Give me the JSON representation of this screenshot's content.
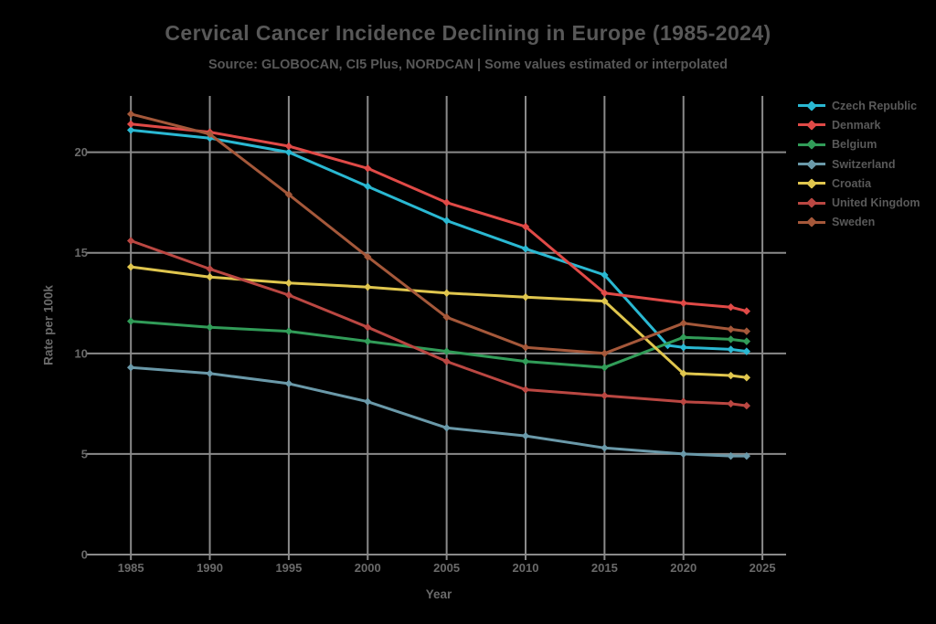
{
  "page": {
    "background": "#000000",
    "text_color": "#585858",
    "tick_color": "#6a6a6a",
    "grid_color": "#8a8a8a"
  },
  "chart_data": {
    "type": "line",
    "title": "Cervical Cancer Incidence Declining in Europe (1985-2024)",
    "subtitle": "Source: GLOBOCAN, CI5 Plus, NORDCAN | Some values estimated or interpolated",
    "xlabel": "Year",
    "ylabel": "Rate per 100k",
    "x_ticks": [
      1985,
      1990,
      1995,
      2000,
      2005,
      2010,
      2015,
      2020,
      2025
    ],
    "y_ticks": [
      0,
      5,
      10,
      15,
      20
    ],
    "xlim": [
      1982.5,
      2026.5
    ],
    "ylim": [
      0,
      22.8
    ],
    "grid": true,
    "legend_position": "top-right",
    "marker": "diamond",
    "series": [
      {
        "name": "Czech Republic",
        "color": "#2ab8d2",
        "points": [
          [
            1985,
            21.1
          ],
          [
            1990,
            20.7
          ],
          [
            1995,
            20.0
          ],
          [
            2000,
            18.3
          ],
          [
            2005,
            16.6
          ],
          [
            2010,
            15.2
          ],
          [
            2015,
            13.9
          ],
          [
            2019,
            10.4
          ],
          [
            2020,
            10.3
          ],
          [
            2023,
            10.2
          ],
          [
            2024,
            10.1
          ]
        ]
      },
      {
        "name": "Denmark",
        "color": "#e04a47",
        "points": [
          [
            1985,
            21.4
          ],
          [
            1990,
            21.0
          ],
          [
            1995,
            20.3
          ],
          [
            2000,
            19.2
          ],
          [
            2005,
            17.5
          ],
          [
            2010,
            16.3
          ],
          [
            2015,
            13.0
          ],
          [
            2020,
            12.5
          ],
          [
            2023,
            12.3
          ],
          [
            2024,
            12.1
          ]
        ]
      },
      {
        "name": "Belgium",
        "color": "#319c58",
        "points": [
          [
            1985,
            11.6
          ],
          [
            1990,
            11.3
          ],
          [
            1995,
            11.1
          ],
          [
            2000,
            10.6
          ],
          [
            2005,
            10.1
          ],
          [
            2010,
            9.6
          ],
          [
            2015,
            9.3
          ],
          [
            2020,
            10.8
          ],
          [
            2023,
            10.7
          ],
          [
            2024,
            10.6
          ]
        ]
      },
      {
        "name": "Switzerland",
        "color": "#6a99a9",
        "points": [
          [
            1985,
            9.3
          ],
          [
            1990,
            9.0
          ],
          [
            1995,
            8.5
          ],
          [
            2000,
            7.6
          ],
          [
            2005,
            6.3
          ],
          [
            2010,
            5.9
          ],
          [
            2015,
            5.3
          ],
          [
            2020,
            5.0
          ],
          [
            2023,
            4.9
          ],
          [
            2024,
            4.9
          ]
        ]
      },
      {
        "name": "Croatia",
        "color": "#e0c64e",
        "points": [
          [
            1985,
            14.3
          ],
          [
            1990,
            13.8
          ],
          [
            1995,
            13.5
          ],
          [
            2000,
            13.3
          ],
          [
            2005,
            13.0
          ],
          [
            2010,
            12.8
          ],
          [
            2015,
            12.6
          ],
          [
            2020,
            9.0
          ],
          [
            2023,
            8.9
          ],
          [
            2024,
            8.8
          ]
        ]
      },
      {
        "name": "United Kingdom",
        "color": "#ba4742",
        "points": [
          [
            1985,
            15.6
          ],
          [
            1990,
            14.2
          ],
          [
            1995,
            12.9
          ],
          [
            2000,
            11.3
          ],
          [
            2005,
            9.6
          ],
          [
            2010,
            8.2
          ],
          [
            2015,
            7.9
          ],
          [
            2020,
            7.6
          ],
          [
            2023,
            7.5
          ],
          [
            2024,
            7.4
          ]
        ]
      },
      {
        "name": "Sweden",
        "color": "#a5583a",
        "points": [
          [
            1985,
            21.9
          ],
          [
            1990,
            20.9
          ],
          [
            1995,
            17.9
          ],
          [
            2000,
            14.8
          ],
          [
            2005,
            11.8
          ],
          [
            2010,
            10.3
          ],
          [
            2015,
            10.0
          ],
          [
            2020,
            11.5
          ],
          [
            2023,
            11.2
          ],
          [
            2024,
            11.1
          ]
        ]
      }
    ]
  }
}
